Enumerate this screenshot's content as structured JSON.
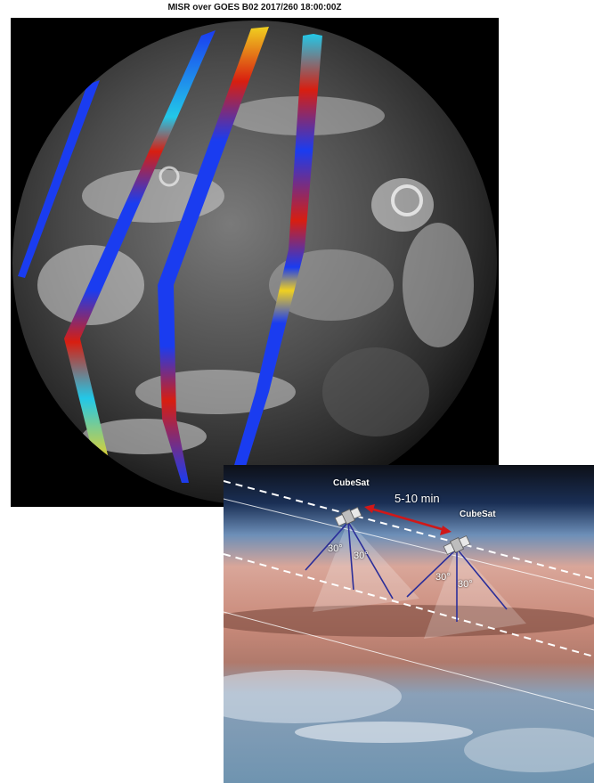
{
  "top_panel": {
    "title": "MISR over GOES B02 2017/260 18:00:00Z"
  },
  "bottom_panel": {
    "satellites": [
      {
        "label": "CubeSat"
      },
      {
        "label": "CubeSat"
      }
    ],
    "interval_label": "5-10 min",
    "angle_labels": [
      "30°",
      "30°",
      "30°",
      "30°"
    ]
  },
  "colors": {
    "swath_low": "#1a3cf0",
    "swath_mid": "#22c8e8",
    "swath_high": "#f0d020",
    "swath_max": "#d81e10",
    "arrow": "#d01818",
    "view_lines": "#2a2e9a"
  }
}
